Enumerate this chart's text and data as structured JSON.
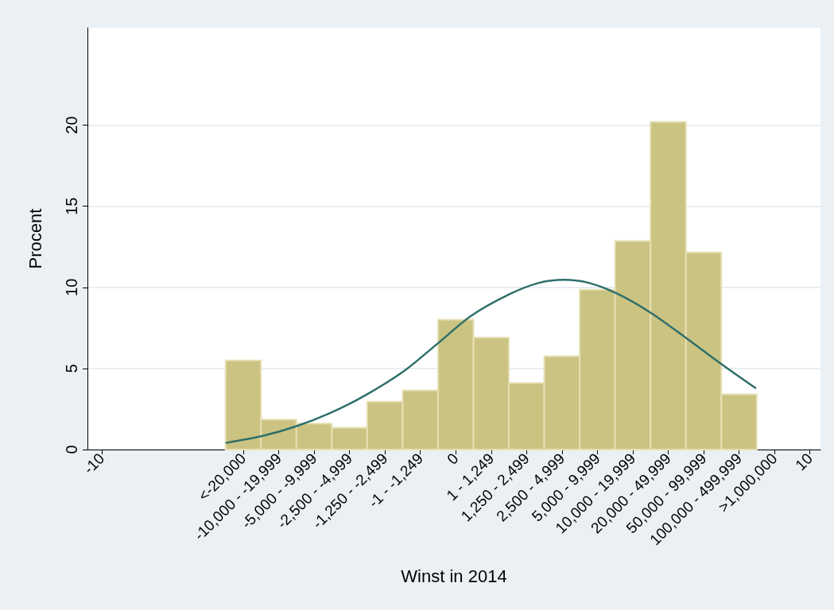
{
  "chart_data": {
    "type": "histogram",
    "xlabel": "Winst in 2014",
    "ylabel": "Procent",
    "bins": [
      -6.5,
      -5.5,
      -4.5,
      -3.5,
      -2.5,
      -1.5,
      -0.5,
      0.5,
      1.5,
      2.5,
      3.5,
      4.5,
      5.5,
      6.5,
      7.5,
      8.5
    ],
    "series": [
      {
        "color": "#cbc382",
        "values": [
          5.5,
          1.85,
          1.6,
          1.35,
          2.95,
          3.65,
          8.0,
          6.9,
          4.1,
          5.75,
          9.85,
          12.85,
          20.2,
          12.15,
          3.4
        ]
      },
      {
        "type": "line",
        "color": "#2f6f6a",
        "x": [
          -6.5,
          -5.47,
          -4.51,
          -3.54,
          -2.58,
          -1.48,
          -0.52,
          0.44,
          1.54,
          2.37,
          3.05,
          3.74,
          4.57,
          5.53,
          6.49,
          7.45,
          8.48
        ],
        "values": [
          0.41,
          0.83,
          1.43,
          2.26,
          3.31,
          4.81,
          6.52,
          8.25,
          9.6,
          10.29,
          10.47,
          10.29,
          9.6,
          8.4,
          6.9,
          5.35,
          3.77
        ]
      }
    ],
    "xlim": [
      -10.4,
      10.3
    ],
    "xticks": [
      {
        "value": -10,
        "label": "-10"
      },
      {
        "value": -6,
        "label": "<-20,000"
      },
      {
        "value": -5,
        "label": "-10,000 - -19,999"
      },
      {
        "value": -4,
        "label": "-5,000 - -9,999"
      },
      {
        "value": -3,
        "label": "-2,500 - -4,999"
      },
      {
        "value": -2,
        "label": "-1,250 - -2,499"
      },
      {
        "value": -1,
        "label": "-1 - -1,249"
      },
      {
        "value": 0,
        "label": "0"
      },
      {
        "value": 1,
        "label": "1 - 1,249"
      },
      {
        "value": 2,
        "label": "1,250 - 2,499"
      },
      {
        "value": 3,
        "label": "2,500 - 4,999"
      },
      {
        "value": 4,
        "label": "5,000 - 9,999"
      },
      {
        "value": 5,
        "label": "10,000 - 19,999"
      },
      {
        "value": 6,
        "label": "20,000 - 49,999"
      },
      {
        "value": 7,
        "label": "50,000 - 99,999"
      },
      {
        "value": 8,
        "label": "100,000 - 499,999"
      },
      {
        "value": 9,
        "label": ">1,000,000"
      },
      {
        "value": 10,
        "label": "10"
      }
    ],
    "ylim": [
      0,
      26
    ],
    "yticks": [
      0,
      5,
      10,
      15,
      20
    ],
    "grid": "y"
  }
}
